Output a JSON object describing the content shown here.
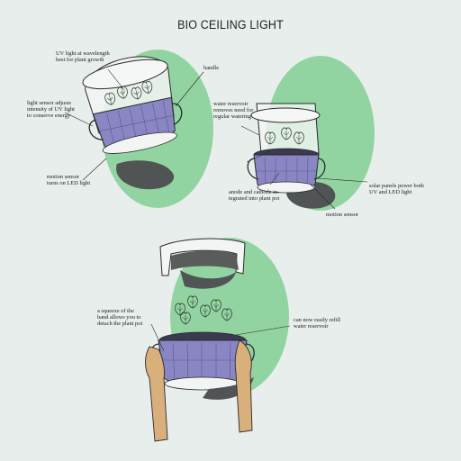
{
  "title": "BIO CEILING LIGHT",
  "colors": {
    "background": "#e8eeeb",
    "circle_green": "#92d4a1",
    "pot_purple": "#8a86c4",
    "pot_dark": "#3c3a52",
    "shadow": "#4f5353",
    "line": "#2a2a2a",
    "hand": "#d9b07c"
  },
  "icons": [
    "monstera-leaf-icon",
    "pot-icon",
    "hand-icon",
    "handle-icon"
  ],
  "diagram1": {
    "labels": {
      "uv_light": "UV light at wavelength\nbest for plant growth",
      "handle": "handle",
      "light_sensor": "light sensor adjusts\nintensity of UV light\nto conserve energy",
      "motion_sensor": "motion sensor\nturns on LED light"
    }
  },
  "diagram2": {
    "labels": {
      "water_reservoir": "water reservoir\nremoves need for\nregular watering",
      "anode_cathode": "anode and cathode in-\ntegrated into plant pot",
      "solar_panels": "solar panels power both\nUV and LED light",
      "motion_sensor": "motion sensor"
    }
  },
  "diagram3": {
    "labels": {
      "squeeze": "a squeeze of the\nhand allows you to\ndetach the plant pot",
      "refill": "can now easily refill\nwater reservoir"
    }
  }
}
